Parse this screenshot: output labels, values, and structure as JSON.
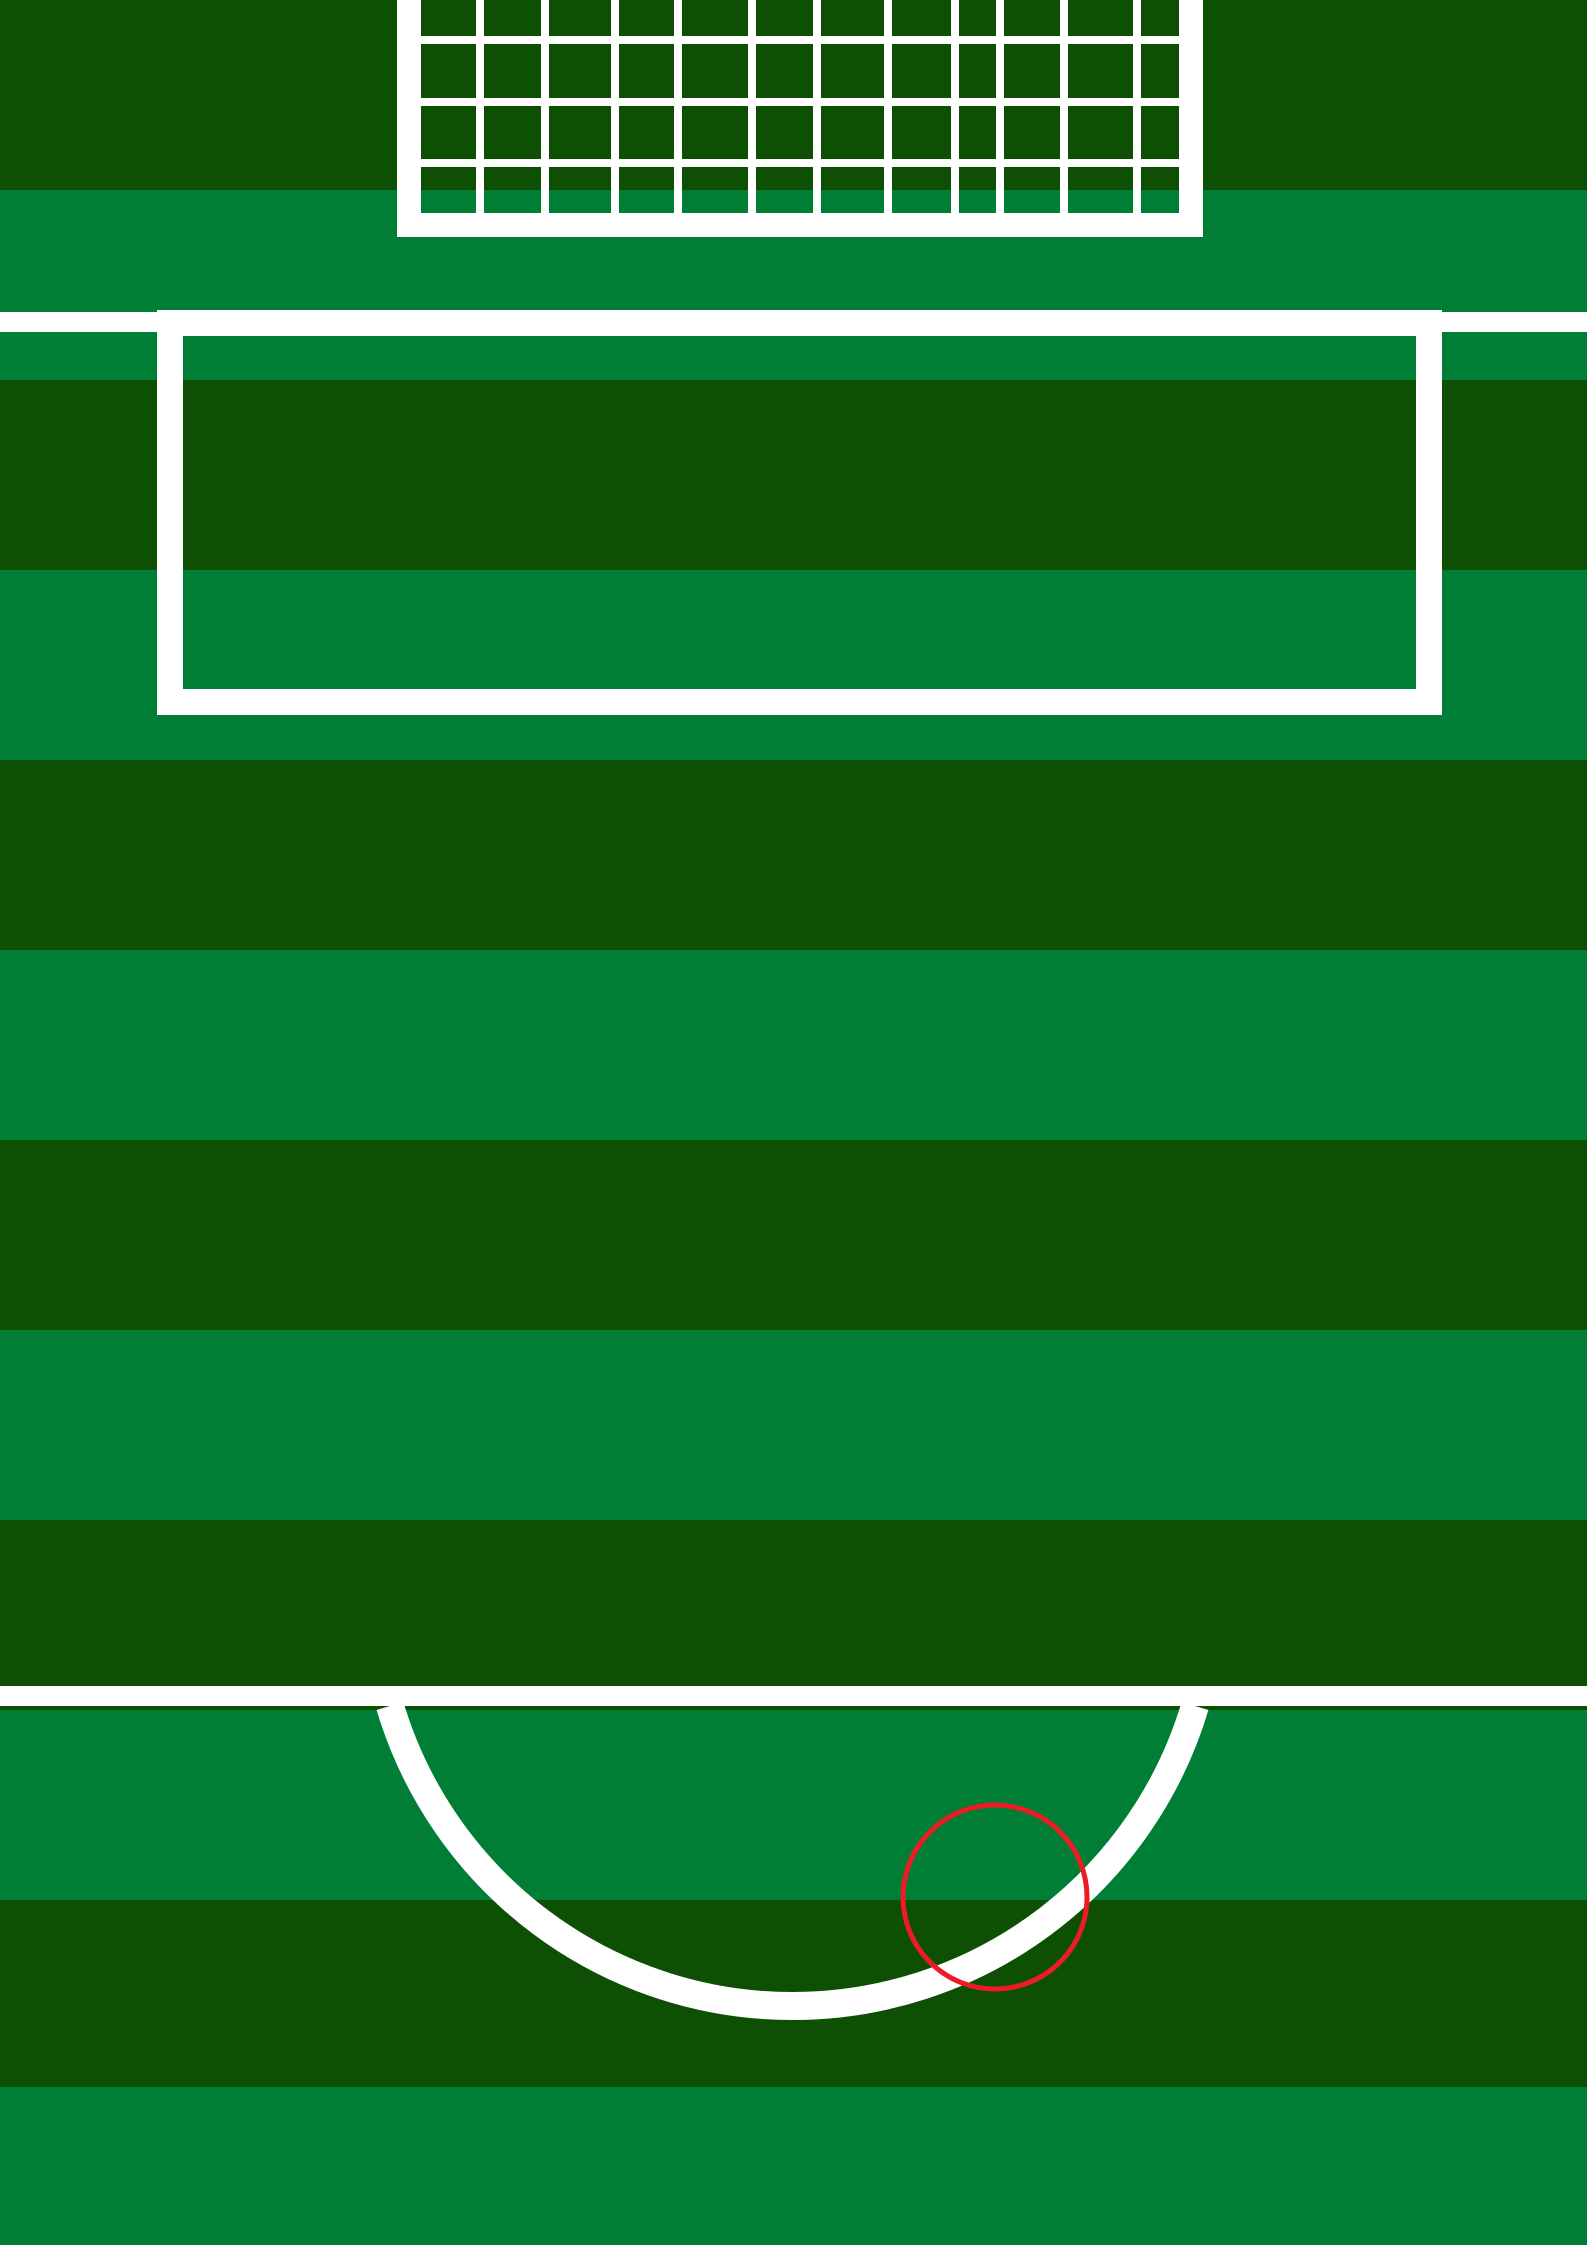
{
  "colors": {
    "stripe_dark": "#0d5004",
    "stripe_light": "#007e35",
    "line_white": "#ffffff",
    "aim_marker_red": "#ed1c24"
  },
  "icons": {
    "goal": "goal-net-icon",
    "aim_marker": "target-circle-icon"
  }
}
